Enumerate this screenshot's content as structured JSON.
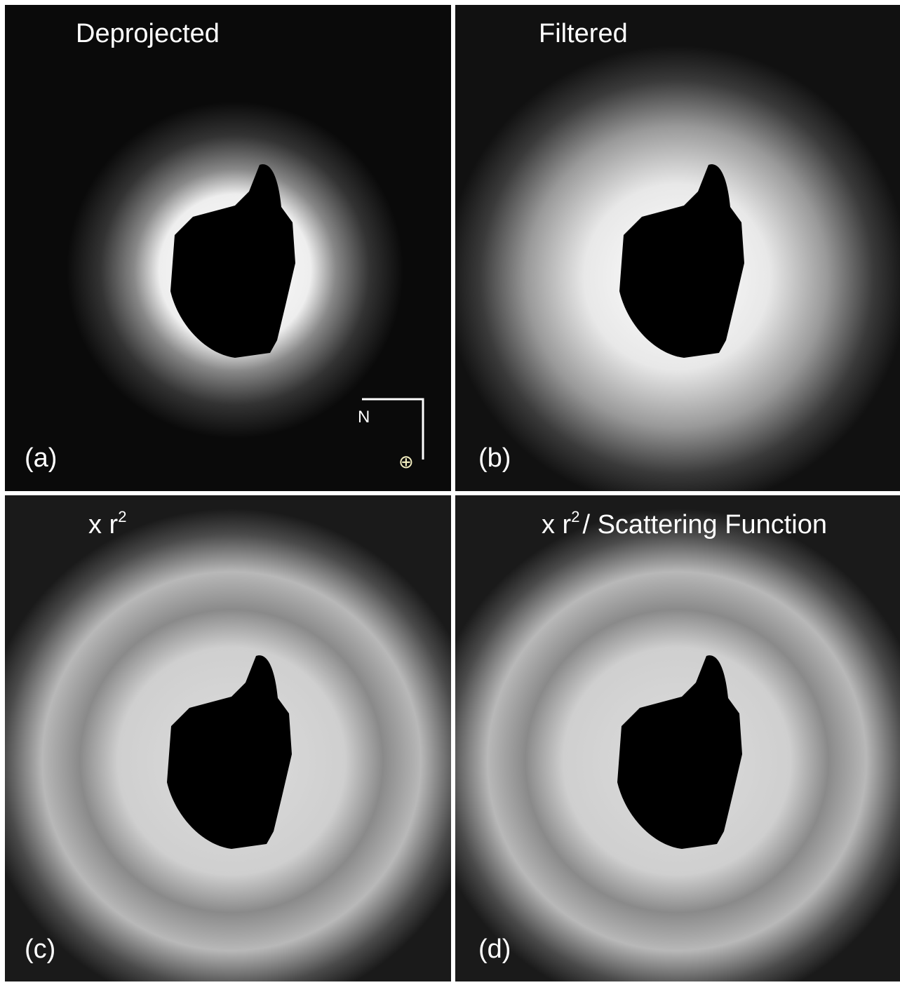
{
  "panels": [
    {
      "title": [
        "Deprojected"
      ],
      "label": "(a)",
      "compass": {
        "north": "N",
        "earth": "⊕"
      }
    },
    {
      "title": [
        "Filtered"
      ],
      "label": "(b)"
    },
    {
      "title": [
        "x r",
        "2"
      ],
      "label": "(c)"
    },
    {
      "title": [
        "x r",
        "2",
        "/ Scattering Function"
      ],
      "label": "(d)"
    }
  ]
}
